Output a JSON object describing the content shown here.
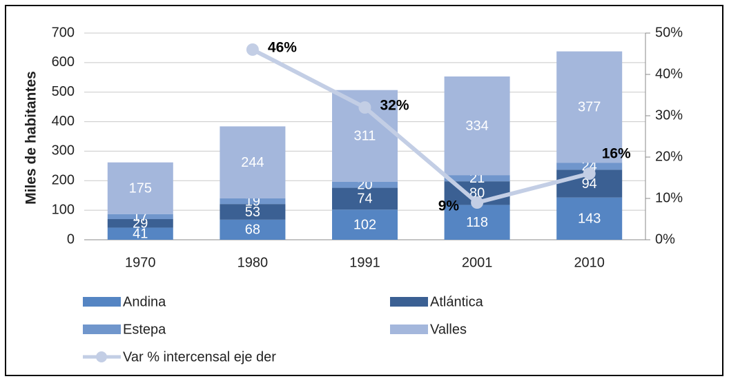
{
  "chart_data": {
    "type": "stacked-bar-line",
    "y_label": "Miles de habitantes",
    "categories": [
      "1970",
      "1980",
      "1991",
      "2001",
      "2010"
    ],
    "series": [
      {
        "name": "Andina",
        "color": "#5585c3",
        "values": [
          41,
          68,
          102,
          118,
          143
        ]
      },
      {
        "name": "Atlántica",
        "color": "#3b6093",
        "values": [
          29,
          53,
          74,
          80,
          94
        ]
      },
      {
        "name": "Estepa",
        "color": "#7096cc",
        "values": [
          17,
          19,
          20,
          21,
          24
        ]
      },
      {
        "name": "Valles",
        "color": "#a4b7dc",
        "values": [
          175,
          244,
          311,
          334,
          377
        ]
      },
      {
        "name": "Var % intercensal eje der",
        "color": "#c3cee5",
        "type": "line",
        "axis": "y2",
        "values": [
          null,
          46,
          32,
          9,
          16
        ],
        "value_labels": [
          null,
          "46%",
          "32%",
          "9%",
          "16%"
        ]
      }
    ],
    "ylim": [
      0,
      700
    ],
    "yticks": [
      0,
      100,
      200,
      300,
      400,
      500,
      600,
      700
    ],
    "y2lim": [
      0,
      50
    ],
    "y2ticks": [
      {
        "value": 0,
        "label": "0%"
      },
      {
        "value": 10,
        "label": "10%"
      },
      {
        "value": 20,
        "label": "20%"
      },
      {
        "value": 30,
        "label": "30%"
      },
      {
        "value": 40,
        "label": "40%"
      },
      {
        "value": 50,
        "label": "50%"
      }
    ],
    "grid": true,
    "legend": "bottom"
  }
}
